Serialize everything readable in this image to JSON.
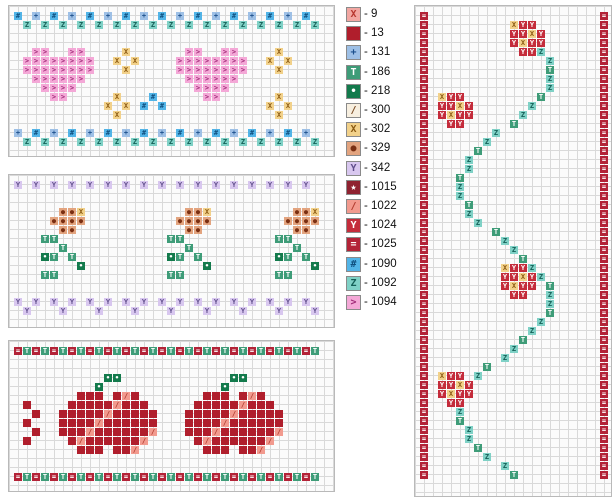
{
  "legend": [
    {
      "symbol": "X",
      "code": "- 9",
      "bg": "#f2a7a2",
      "fg": "#b7372f"
    },
    {
      "symbol": "",
      "code": "- 13",
      "bg": "#b01e2c",
      "fg": "#ffffff"
    },
    {
      "symbol": "+",
      "code": "- 131",
      "bg": "#9ec0e6",
      "fg": "#1c4f8c"
    },
    {
      "symbol": "T",
      "code": "- 186",
      "bg": "#3e9c78",
      "fg": "#ffffff"
    },
    {
      "symbol": "•",
      "code": "- 218",
      "bg": "#137a4c",
      "fg": "#ffffff"
    },
    {
      "symbol": "/",
      "code": "- 300",
      "bg": "#f7efe0",
      "fg": "#7a4b23"
    },
    {
      "symbol": "X",
      "code": "- 302",
      "bg": "#f2d18a",
      "fg": "#8b5a12"
    },
    {
      "symbol": "●",
      "code": "- 329",
      "bg": "#e3a47f",
      "fg": "#7a2f12"
    },
    {
      "symbol": "Y",
      "code": "- 342",
      "bg": "#d8c7ef",
      "fg": "#5e4c8a"
    },
    {
      "symbol": "★",
      "code": "- 1015",
      "bg": "#8f2230",
      "fg": "#ffffff"
    },
    {
      "symbol": "/",
      "code": "- 1022",
      "bg": "#f29a8e",
      "fg": "#b03a2e"
    },
    {
      "symbol": "Y",
      "code": "- 1024",
      "bg": "#c42c3b",
      "fg": "#ffffff"
    },
    {
      "symbol": "=",
      "code": "- 1025",
      "bg": "#b32337",
      "fg": "#ffffff"
    },
    {
      "symbol": "#",
      "code": "- 1090",
      "bg": "#52b4e7",
      "fg": "#0f4f7f"
    },
    {
      "symbol": "Z",
      "code": "- 1092",
      "bg": "#7fd1c6",
      "fg": "#135f56"
    },
    {
      "symbol": ">",
      "code": "- 1094",
      "bg": "#f4a8d7",
      "fg": "#a02b78"
    }
  ]
}
